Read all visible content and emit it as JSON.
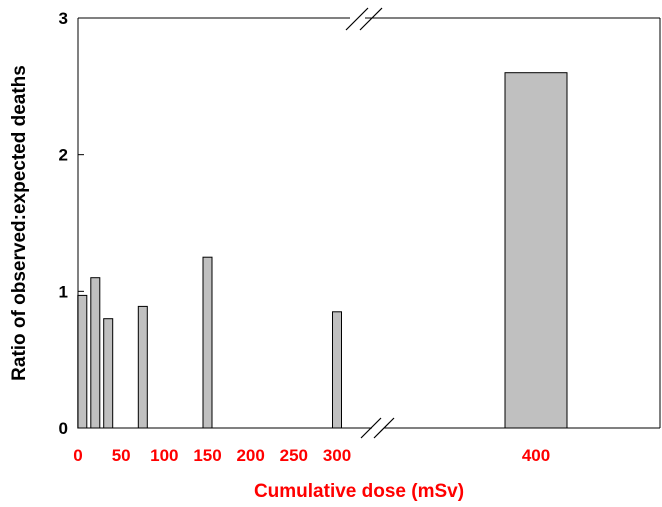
{
  "chart_data": {
    "type": "bar",
    "title": "",
    "xlabel": "Cumulative dose (mSv)",
    "ylabel": "Ratio of observed:expected deaths",
    "ylim": [
      0,
      3
    ],
    "yticks": [
      "0",
      "1",
      "2",
      "3"
    ],
    "xticks": [
      "0",
      "50",
      "100",
      "150",
      "200",
      "250",
      "300",
      "400"
    ],
    "axis_break": "between 300 and 400",
    "grid": false,
    "colors": {
      "bar_fill": "#c0c0c0",
      "bar_stroke": "#000000",
      "x_label_color": "#ff0000",
      "axis_color": "#000000"
    },
    "bars": [
      {
        "dose": 5,
        "value": 0.97
      },
      {
        "dose": 20,
        "value": 1.1
      },
      {
        "dose": 35,
        "value": 0.8
      },
      {
        "dose": 75,
        "value": 0.89
      },
      {
        "dose": 150,
        "value": 1.25
      },
      {
        "dose": 300,
        "value": 0.85
      },
      {
        "dose": 400,
        "value": 2.6
      }
    ]
  }
}
